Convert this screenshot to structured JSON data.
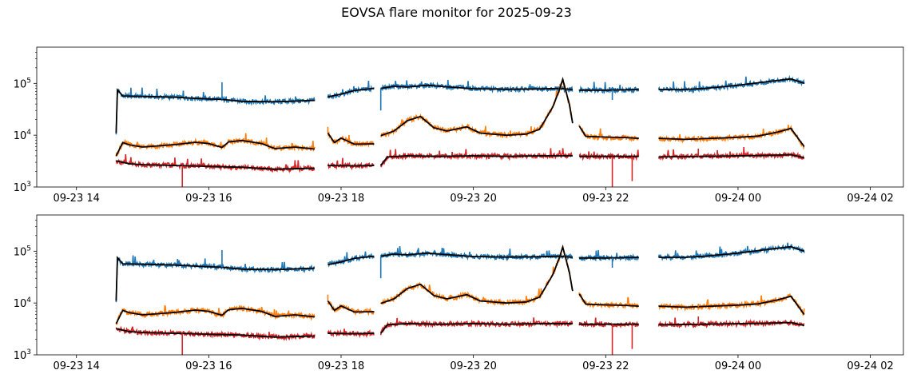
{
  "chart_data": {
    "title": "EOVSA flare monitor for 2025-09-23",
    "type": "line",
    "x_axis": {
      "unit": "hours since 2025-09-23 00:00",
      "range": [
        13.4,
        26.5
      ],
      "ticks": [
        {
          "value": 14,
          "label": "09-23 14"
        },
        {
          "value": 16,
          "label": "09-23 16"
        },
        {
          "value": 18,
          "label": "09-23 18"
        },
        {
          "value": 20,
          "label": "09-23 20"
        },
        {
          "value": 22,
          "label": "09-23 22"
        },
        {
          "value": 24,
          "label": "09-24 00"
        },
        {
          "value": 26,
          "label": "09-24 02"
        }
      ]
    },
    "y_axis": {
      "scale": "log",
      "range": [
        1000,
        500000
      ],
      "ticks": [
        {
          "value": 1000,
          "base": "10",
          "exp": "3"
        },
        {
          "value": 10000,
          "base": "10",
          "exp": "4"
        },
        {
          "value": 100000,
          "base": "10",
          "exp": "5"
        }
      ]
    },
    "segments": [
      [
        14.6,
        17.6
      ],
      [
        17.8,
        18.5
      ],
      [
        18.6,
        21.5
      ],
      [
        21.6,
        22.5
      ],
      [
        22.8,
        25.0
      ]
    ],
    "series": [
      {
        "color": "#1f77b4",
        "smooth_color": "#000000",
        "points": [
          [
            14.6,
            11000
          ],
          [
            14.62,
            75000
          ],
          [
            14.7,
            57000
          ],
          [
            15.0,
            56000
          ],
          [
            15.5,
            54000
          ],
          [
            16.0,
            50000
          ],
          [
            16.2,
            49000
          ],
          [
            16.5,
            45000
          ],
          [
            17.0,
            44000
          ],
          [
            17.6,
            47000
          ],
          [
            17.8,
            55000
          ],
          [
            18.0,
            62000
          ],
          [
            18.2,
            73000
          ],
          [
            18.5,
            80000
          ],
          [
            18.6,
            80000
          ],
          [
            18.8,
            88000
          ],
          [
            19.0,
            85000
          ],
          [
            19.3,
            92000
          ],
          [
            19.6,
            86000
          ],
          [
            20.0,
            79000
          ],
          [
            20.5,
            77000
          ],
          [
            21.0,
            78000
          ],
          [
            21.3,
            80000
          ],
          [
            21.5,
            76000
          ],
          [
            21.6,
            74000
          ],
          [
            22.0,
            74000
          ],
          [
            22.5,
            76000
          ],
          [
            22.8,
            76000
          ],
          [
            23.2,
            76000
          ],
          [
            23.5,
            80000
          ],
          [
            24.0,
            92000
          ],
          [
            24.5,
            110000
          ],
          [
            24.8,
            122000
          ],
          [
            25.0,
            100000
          ]
        ],
        "spikes": [
          [
            16.2,
            105000
          ],
          [
            18.6,
            30000
          ],
          [
            22.1,
            48000
          ]
        ]
      },
      {
        "color": "#ff7f0e",
        "smooth_color": "#000000",
        "points": [
          [
            14.6,
            4000
          ],
          [
            14.7,
            7200
          ],
          [
            14.8,
            6500
          ],
          [
            15.0,
            5900
          ],
          [
            15.5,
            6600
          ],
          [
            15.8,
            7300
          ],
          [
            16.0,
            6900
          ],
          [
            16.2,
            5800
          ],
          [
            16.3,
            7400
          ],
          [
            16.5,
            7900
          ],
          [
            16.8,
            6900
          ],
          [
            17.0,
            5500
          ],
          [
            17.3,
            5900
          ],
          [
            17.6,
            5400
          ],
          [
            17.8,
            11000
          ],
          [
            17.9,
            7200
          ],
          [
            18.0,
            8800
          ],
          [
            18.2,
            6700
          ],
          [
            18.5,
            6800
          ],
          [
            18.6,
            9800
          ],
          [
            18.8,
            12000
          ],
          [
            19.0,
            19000
          ],
          [
            19.2,
            23000
          ],
          [
            19.4,
            14000
          ],
          [
            19.6,
            12000
          ],
          [
            19.9,
            14500
          ],
          [
            20.1,
            11000
          ],
          [
            20.5,
            10000
          ],
          [
            20.8,
            10500
          ],
          [
            21.0,
            13000
          ],
          [
            21.2,
            35000
          ],
          [
            21.3,
            75000
          ],
          [
            21.35,
            120000
          ],
          [
            21.45,
            40000
          ],
          [
            21.5,
            17000
          ],
          [
            21.6,
            15000
          ],
          [
            21.7,
            9500
          ],
          [
            22.0,
            9200
          ],
          [
            22.3,
            9000
          ],
          [
            22.5,
            8700
          ],
          [
            22.8,
            8700
          ],
          [
            23.2,
            8300
          ],
          [
            23.6,
            8700
          ],
          [
            24.0,
            9100
          ],
          [
            24.3,
            9600
          ],
          [
            24.6,
            11500
          ],
          [
            24.8,
            13500
          ],
          [
            25.0,
            6000
          ]
        ],
        "spikes": [
          [
            17.8,
            14500
          ],
          [
            21.6,
            16000
          ],
          [
            23.4,
            9700
          ]
        ]
      },
      {
        "color": "#d62728",
        "smooth_color": "#000000",
        "points": [
          [
            14.6,
            3200
          ],
          [
            14.8,
            2800
          ],
          [
            15.0,
            2700
          ],
          [
            15.5,
            2600
          ],
          [
            16.0,
            2500
          ],
          [
            16.5,
            2400
          ],
          [
            17.0,
            2200
          ],
          [
            17.6,
            2300
          ],
          [
            17.8,
            2600
          ],
          [
            18.2,
            2550
          ],
          [
            18.5,
            2600
          ],
          [
            18.6,
            2600
          ],
          [
            18.7,
            3800
          ],
          [
            19.0,
            4000
          ],
          [
            19.5,
            3900
          ],
          [
            20.0,
            4000
          ],
          [
            20.5,
            3900
          ],
          [
            21.0,
            4000
          ],
          [
            21.5,
            4000
          ],
          [
            21.6,
            3900
          ],
          [
            22.0,
            3900
          ],
          [
            22.5,
            3900
          ],
          [
            22.8,
            3800
          ],
          [
            23.5,
            3900
          ],
          [
            24.0,
            4000
          ],
          [
            24.5,
            4100
          ],
          [
            24.8,
            4200
          ],
          [
            25.0,
            3700
          ]
        ],
        "spikes": [
          [
            15.6,
            900
          ],
          [
            22.1,
            900
          ],
          [
            22.4,
            1300
          ],
          [
            23.4,
            5500
          ]
        ]
      }
    ]
  }
}
